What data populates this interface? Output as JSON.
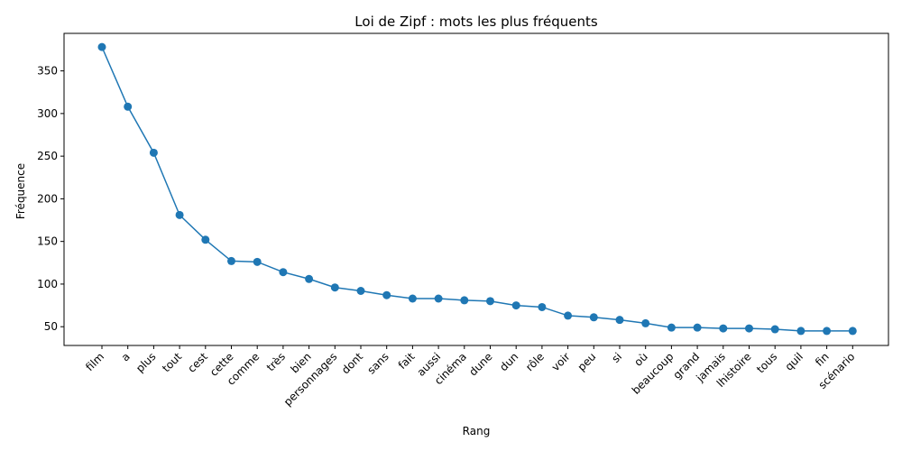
{
  "chart_data": {
    "type": "line",
    "title": "Loi de Zipf : mots les plus fréquents",
    "xlabel": "Rang",
    "ylabel": "Fréquence",
    "categories": [
      "film",
      "a",
      "plus",
      "tout",
      "cest",
      "cette",
      "comme",
      "très",
      "bien",
      "personnages",
      "dont",
      "sans",
      "fait",
      "aussi",
      "cinéma",
      "dune",
      "dun",
      "rôle",
      "voir",
      "peu",
      "si",
      "où",
      "beaucoup",
      "grand",
      "jamais",
      "lhistoire",
      "tous",
      "quil",
      "fin",
      "scénario"
    ],
    "series": [
      {
        "values": [
          378,
          308,
          254,
          181,
          152,
          127,
          126,
          114,
          106,
          96,
          92,
          87,
          83,
          83,
          81,
          80,
          75,
          73,
          63,
          61,
          58,
          54,
          49,
          49,
          48,
          48,
          47,
          45,
          45,
          45
        ],
        "color": "#1f77b4",
        "marker": "circle"
      }
    ],
    "ylim": [
      28,
      394
    ],
    "yticks": [
      50,
      100,
      150,
      200,
      250,
      300,
      350
    ],
    "grid": false,
    "legend": "none"
  }
}
